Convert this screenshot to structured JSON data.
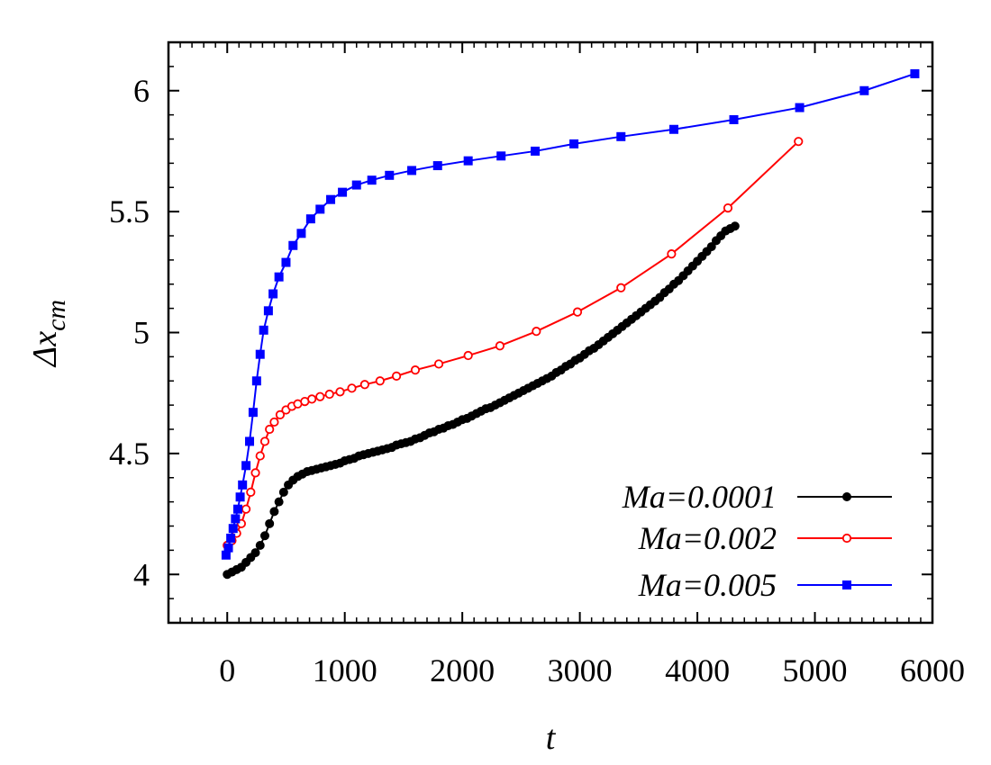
{
  "chart_data": {
    "type": "line",
    "title": "",
    "xlabel": "t",
    "ylabel": "Δx",
    "ylabel_subscript": "cm",
    "xlim": [
      -500,
      6000
    ],
    "ylim": [
      3.8,
      6.2
    ],
    "xticks": [
      0,
      1000,
      2000,
      3000,
      4000,
      5000,
      6000
    ],
    "xtick_labels": [
      "0",
      "1000",
      "2000",
      "3000",
      "4000",
      "5000",
      "6000"
    ],
    "yticks": [
      4,
      4.5,
      5,
      5.5,
      6
    ],
    "ytick_labels": [
      "4",
      "4.5",
      "5",
      "5.5",
      "6"
    ],
    "legend_position": "bottom-right",
    "series": [
      {
        "name": "Ma=0.0001",
        "color": "#000000",
        "marker": "filled-circle",
        "x": [
          0,
          40,
          80,
          120,
          160,
          200,
          240,
          280,
          320,
          360,
          400,
          440,
          480,
          520,
          560,
          600,
          640,
          680,
          720,
          760,
          800,
          840,
          880,
          920,
          960,
          1000,
          1040,
          1080,
          1120,
          1160,
          1200,
          1240,
          1280,
          1320,
          1360,
          1400,
          1440,
          1480,
          1520,
          1560,
          1600,
          1640,
          1680,
          1720,
          1760,
          1800,
          1840,
          1880,
          1920,
          1960,
          2000,
          2040,
          2080,
          2120,
          2160,
          2200,
          2240,
          2280,
          2320,
          2360,
          2400,
          2440,
          2480,
          2520,
          2560,
          2600,
          2640,
          2680,
          2720,
          2760,
          2800,
          2840,
          2880,
          2920,
          2960,
          3000,
          3040,
          3080,
          3120,
          3160,
          3200,
          3240,
          3280,
          3320,
          3360,
          3400,
          3440,
          3480,
          3520,
          3560,
          3600,
          3640,
          3680,
          3720,
          3760,
          3800,
          3840,
          3880,
          3920,
          3960,
          4000,
          4040,
          4080,
          4120,
          4160,
          4200,
          4240,
          4280,
          4320
        ],
        "y": [
          4.0,
          4.01,
          4.02,
          4.03,
          4.05,
          4.07,
          4.09,
          4.12,
          4.16,
          4.21,
          4.26,
          4.3,
          4.34,
          4.37,
          4.39,
          4.405,
          4.415,
          4.425,
          4.43,
          4.435,
          4.44,
          4.445,
          4.45,
          4.455,
          4.46,
          4.47,
          4.475,
          4.48,
          4.49,
          4.495,
          4.5,
          4.505,
          4.51,
          4.515,
          4.52,
          4.525,
          4.535,
          4.54,
          4.545,
          4.55,
          4.56,
          4.565,
          4.575,
          4.585,
          4.59,
          4.6,
          4.605,
          4.615,
          4.62,
          4.63,
          4.64,
          4.645,
          4.655,
          4.665,
          4.675,
          4.685,
          4.69,
          4.7,
          4.71,
          4.72,
          4.73,
          4.74,
          4.75,
          4.76,
          4.77,
          4.78,
          4.79,
          4.8,
          4.81,
          4.82,
          4.835,
          4.845,
          4.86,
          4.87,
          4.885,
          4.895,
          4.91,
          4.925,
          4.935,
          4.95,
          4.965,
          4.98,
          4.995,
          5.01,
          5.025,
          5.04,
          5.055,
          5.07,
          5.085,
          5.1,
          5.115,
          5.13,
          5.145,
          5.165,
          5.18,
          5.2,
          5.215,
          5.235,
          5.255,
          5.275,
          5.295,
          5.315,
          5.335,
          5.355,
          5.38,
          5.4,
          5.42,
          5.43,
          5.44
        ]
      },
      {
        "name": "Ma=0.002",
        "color": "#ff0000",
        "marker": "open-circle",
        "x": [
          0,
          40,
          80,
          120,
          160,
          200,
          240,
          280,
          320,
          360,
          400,
          450,
          500,
          550,
          600,
          660,
          720,
          790,
          870,
          960,
          1060,
          1170,
          1300,
          1440,
          1600,
          1800,
          2050,
          2320,
          2630,
          2980,
          3350,
          3780,
          4260,
          4860
        ],
        "y": [
          4.12,
          4.14,
          4.17,
          4.21,
          4.27,
          4.34,
          4.42,
          4.49,
          4.55,
          4.6,
          4.63,
          4.66,
          4.68,
          4.695,
          4.705,
          4.715,
          4.725,
          4.735,
          4.745,
          4.755,
          4.77,
          4.785,
          4.8,
          4.82,
          4.845,
          4.87,
          4.905,
          4.945,
          5.005,
          5.085,
          5.185,
          5.325,
          5.515,
          5.79
        ]
      },
      {
        "name": "Ma=0.005",
        "color": "#0000ff",
        "marker": "filled-square",
        "x": [
          -10,
          10,
          30,
          50,
          70,
          90,
          110,
          130,
          160,
          190,
          220,
          250,
          280,
          310,
          350,
          390,
          440,
          500,
          560,
          630,
          710,
          790,
          880,
          980,
          1100,
          1230,
          1380,
          1570,
          1790,
          2050,
          2330,
          2620,
          2950,
          3350,
          3800,
          4310,
          4870,
          5420,
          5850
        ],
        "y": [
          4.08,
          4.11,
          4.15,
          4.19,
          4.23,
          4.27,
          4.32,
          4.37,
          4.45,
          4.55,
          4.67,
          4.8,
          4.91,
          5.01,
          5.09,
          5.16,
          5.23,
          5.29,
          5.36,
          5.41,
          5.47,
          5.51,
          5.55,
          5.58,
          5.61,
          5.63,
          5.65,
          5.67,
          5.69,
          5.71,
          5.73,
          5.75,
          5.78,
          5.81,
          5.84,
          5.88,
          5.93,
          6.0,
          6.07
        ]
      }
    ]
  }
}
